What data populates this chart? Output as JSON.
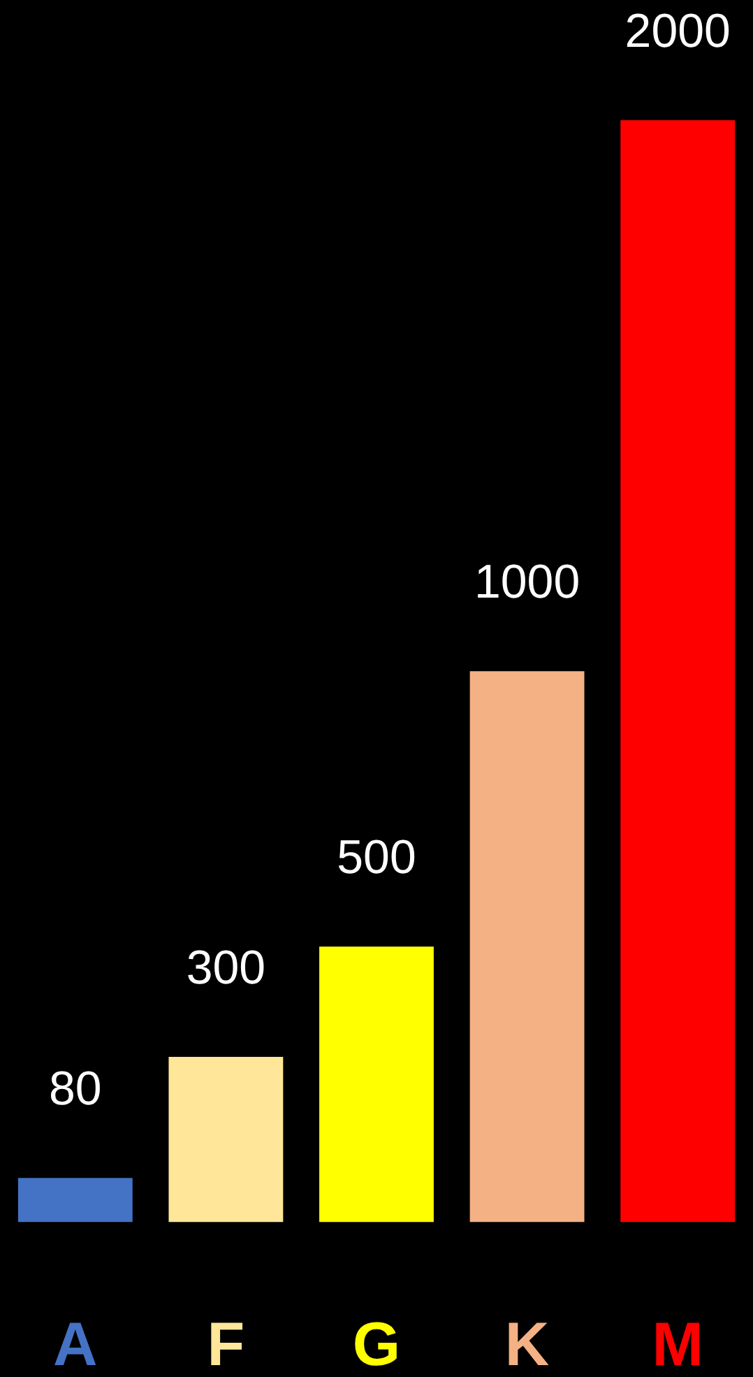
{
  "chart_data": {
    "type": "bar",
    "categories": [
      "A",
      "F",
      "G",
      "K",
      "M"
    ],
    "values": [
      80,
      300,
      500,
      1000,
      2000
    ],
    "colors": [
      "#4472c4",
      "#ffe699",
      "#ffff00",
      "#f4b183",
      "#ff0000"
    ],
    "data_labels": true
  }
}
